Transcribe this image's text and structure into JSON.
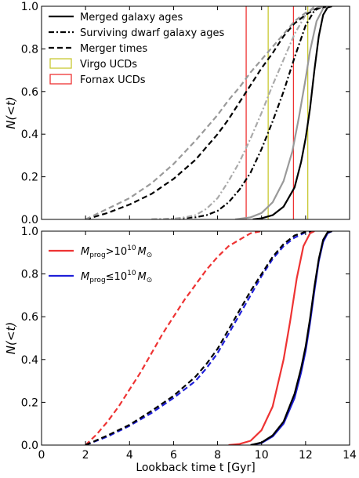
{
  "chart_data": [
    {
      "type": "line",
      "panel": "top",
      "ylabel": "N(<t)",
      "xlabel": "",
      "xlim": [
        0,
        14
      ],
      "ylim": [
        0,
        1
      ],
      "yticks": [
        "0.0",
        "0.2",
        "0.4",
        "0.6",
        "0.8",
        "1.0"
      ],
      "legend_position": "top-left",
      "legend": [
        {
          "label": "Merged galaxy ages",
          "style": "solid",
          "color": "#000000"
        },
        {
          "label": "Surviving dwarf galaxy ages",
          "style": "dashdot",
          "color": "#000000"
        },
        {
          "label": "Merger times",
          "style": "dashed",
          "color": "#000000"
        },
        {
          "label": "Virgo UCDs",
          "style": "box",
          "color": "#c8c832"
        },
        {
          "label": "Fornax UCDs",
          "style": "box",
          "color": "#ee3333"
        }
      ],
      "vlines": [
        {
          "x": 9.3,
          "color": "#ee3333"
        },
        {
          "x": 11.45,
          "color": "#ee3333"
        },
        {
          "x": 10.3,
          "color": "#c8c832"
        },
        {
          "x": 12.1,
          "color": "#c8c832"
        }
      ],
      "series": [
        {
          "name": "Merged galaxy ages",
          "style": "solid",
          "color": "#000000",
          "points": [
            [
              9.6,
              0
            ],
            [
              10.0,
              0.005
            ],
            [
              10.5,
              0.02
            ],
            [
              11.0,
              0.06
            ],
            [
              11.5,
              0.15
            ],
            [
              11.8,
              0.27
            ],
            [
              12.0,
              0.38
            ],
            [
              12.2,
              0.52
            ],
            [
              12.4,
              0.7
            ],
            [
              12.6,
              0.86
            ],
            [
              12.8,
              0.96
            ],
            [
              13.0,
              0.995
            ],
            [
              13.2,
              1.0
            ]
          ]
        },
        {
          "style": "solid",
          "color": "#999999",
          "points": [
            [
              8.8,
              0
            ],
            [
              9.5,
              0.01
            ],
            [
              10.0,
              0.03
            ],
            [
              10.5,
              0.08
            ],
            [
              11.0,
              0.18
            ],
            [
              11.4,
              0.32
            ],
            [
              11.7,
              0.48
            ],
            [
              12.0,
              0.66
            ],
            [
              12.2,
              0.79
            ],
            [
              12.5,
              0.93
            ],
            [
              12.8,
              0.99
            ],
            [
              13.0,
              1.0
            ]
          ]
        },
        {
          "name": "Surviving dwarf galaxy ages",
          "style": "dashdot",
          "color": "#000000",
          "points": [
            [
              5,
              0
            ],
            [
              6,
              0.003
            ],
            [
              7,
              0.01
            ],
            [
              7.5,
              0.02
            ],
            [
              8,
              0.04
            ],
            [
              8.5,
              0.08
            ],
            [
              9,
              0.14
            ],
            [
              9.5,
              0.22
            ],
            [
              10,
              0.33
            ],
            [
              10.5,
              0.46
            ],
            [
              11,
              0.6
            ],
            [
              11.5,
              0.76
            ],
            [
              12,
              0.91
            ],
            [
              12.4,
              0.98
            ],
            [
              12.8,
              1.0
            ]
          ]
        },
        {
          "style": "dashdot",
          "color": "#aaaaaa",
          "points": [
            [
              5,
              0
            ],
            [
              6,
              0.003
            ],
            [
              6.5,
              0.01
            ],
            [
              7,
              0.02
            ],
            [
              7.5,
              0.05
            ],
            [
              8,
              0.1
            ],
            [
              8.5,
              0.18
            ],
            [
              9,
              0.27
            ],
            [
              9.5,
              0.38
            ],
            [
              10,
              0.5
            ],
            [
              10.5,
              0.63
            ],
            [
              11,
              0.75
            ],
            [
              11.5,
              0.87
            ],
            [
              12,
              0.96
            ],
            [
              12.4,
              1.0
            ]
          ]
        },
        {
          "name": "Merger times",
          "style": "dashed",
          "color": "#000000",
          "points": [
            [
              2,
              0
            ],
            [
              3,
              0.03
            ],
            [
              4,
              0.07
            ],
            [
              5,
              0.12
            ],
            [
              6,
              0.19
            ],
            [
              7,
              0.28
            ],
            [
              8,
              0.4
            ],
            [
              8.5,
              0.47
            ],
            [
              9,
              0.55
            ],
            [
              9.5,
              0.63
            ],
            [
              10,
              0.71
            ],
            [
              10.5,
              0.78
            ],
            [
              11,
              0.86
            ],
            [
              11.5,
              0.92
            ],
            [
              12,
              0.96
            ],
            [
              12.5,
              0.99
            ],
            [
              13,
              1.0
            ]
          ]
        },
        {
          "style": "dashed",
          "color": "#999999",
          "points": [
            [
              2,
              0
            ],
            [
              3,
              0.05
            ],
            [
              4,
              0.1
            ],
            [
              5,
              0.17
            ],
            [
              6,
              0.26
            ],
            [
              7,
              0.37
            ],
            [
              8,
              0.49
            ],
            [
              8.5,
              0.56
            ],
            [
              9,
              0.62
            ],
            [
              9.5,
              0.69
            ],
            [
              10,
              0.75
            ],
            [
              10.5,
              0.81
            ],
            [
              11,
              0.87
            ],
            [
              11.5,
              0.93
            ],
            [
              12,
              0.97
            ],
            [
              12.5,
              0.995
            ],
            [
              13,
              1.0
            ]
          ]
        }
      ]
    },
    {
      "type": "line",
      "panel": "bottom",
      "ylabel": "N(<t)",
      "xlabel": "Lookback time t [Gyr]",
      "xlim": [
        0,
        14
      ],
      "ylim": [
        0,
        1
      ],
      "xticks": [
        "0",
        "2",
        "4",
        "6",
        "8",
        "10",
        "12",
        "14"
      ],
      "yticks": [
        "0.0",
        "0.2",
        "0.4",
        "0.6",
        "0.8",
        "1.0"
      ],
      "legend_position": "top-left",
      "legend": [
        {
          "label_main": "M",
          "label_sub": "prog",
          "label_rel": ">10",
          "label_exp": "10",
          "label_unit": "M",
          "label_unit_sub": "⊙",
          "color": "#ee3333"
        },
        {
          "label_main": "M",
          "label_sub": "prog",
          "label_rel": "≤10",
          "label_exp": "10",
          "label_unit": "M",
          "label_unit_sub": "⊙",
          "color": "#1f1fd8"
        }
      ],
      "series": [
        {
          "style": "dashed",
          "color": "#ee3333",
          "points": [
            [
              2,
              0
            ],
            [
              2.5,
              0.05
            ],
            [
              3,
              0.11
            ],
            [
              3.5,
              0.18
            ],
            [
              4,
              0.26
            ],
            [
              4.5,
              0.34
            ],
            [
              5,
              0.43
            ],
            [
              5.5,
              0.52
            ],
            [
              6,
              0.6
            ],
            [
              6.5,
              0.68
            ],
            [
              7,
              0.75
            ],
            [
              7.5,
              0.82
            ],
            [
              8,
              0.88
            ],
            [
              8.5,
              0.93
            ],
            [
              9,
              0.96
            ],
            [
              9.5,
              0.99
            ],
            [
              10,
              1.0
            ]
          ]
        },
        {
          "style": "dashed",
          "color": "#1f1fd8",
          "points": [
            [
              2,
              0
            ],
            [
              3,
              0.04
            ],
            [
              4,
              0.09
            ],
            [
              5,
              0.15
            ],
            [
              6,
              0.22
            ],
            [
              7,
              0.3
            ],
            [
              7.5,
              0.36
            ],
            [
              8,
              0.43
            ],
            [
              8.5,
              0.52
            ],
            [
              9,
              0.61
            ],
            [
              9.5,
              0.7
            ],
            [
              10,
              0.79
            ],
            [
              10.5,
              0.87
            ],
            [
              11,
              0.93
            ],
            [
              11.5,
              0.97
            ],
            [
              12,
              0.995
            ],
            [
              12.4,
              1.0
            ]
          ]
        },
        {
          "style": "dashed",
          "color": "#000000",
          "points": [
            [
              2,
              0
            ],
            [
              3,
              0.045
            ],
            [
              4,
              0.095
            ],
            [
              5,
              0.16
            ],
            [
              6,
              0.23
            ],
            [
              7,
              0.32
            ],
            [
              7.5,
              0.38
            ],
            [
              8,
              0.45
            ],
            [
              8.5,
              0.54
            ],
            [
              9,
              0.63
            ],
            [
              9.5,
              0.72
            ],
            [
              10,
              0.8
            ],
            [
              10.5,
              0.88
            ],
            [
              11,
              0.94
            ],
            [
              11.5,
              0.98
            ],
            [
              12,
              0.997
            ],
            [
              12.4,
              1.0
            ]
          ]
        },
        {
          "style": "solid",
          "color": "#ee3333",
          "points": [
            [
              8.5,
              0
            ],
            [
              9,
              0.005
            ],
            [
              9.5,
              0.02
            ],
            [
              10,
              0.07
            ],
            [
              10.5,
              0.18
            ],
            [
              11,
              0.4
            ],
            [
              11.3,
              0.58
            ],
            [
              11.6,
              0.78
            ],
            [
              11.9,
              0.93
            ],
            [
              12.2,
              0.99
            ],
            [
              12.4,
              1.0
            ]
          ]
        },
        {
          "style": "solid",
          "color": "#1f1fd8",
          "points": [
            [
              9.5,
              0
            ],
            [
              10,
              0.01
            ],
            [
              10.5,
              0.04
            ],
            [
              11,
              0.1
            ],
            [
              11.5,
              0.22
            ],
            [
              11.8,
              0.34
            ],
            [
              12,
              0.44
            ],
            [
              12.2,
              0.57
            ],
            [
              12.4,
              0.72
            ],
            [
              12.6,
              0.86
            ],
            [
              12.8,
              0.95
            ],
            [
              13,
              0.99
            ],
            [
              13.2,
              1.0
            ]
          ]
        },
        {
          "style": "solid",
          "color": "#000000",
          "points": [
            [
              9.5,
              0
            ],
            [
              10,
              0.012
            ],
            [
              10.5,
              0.045
            ],
            [
              11,
              0.11
            ],
            [
              11.5,
              0.24
            ],
            [
              11.8,
              0.36
            ],
            [
              12,
              0.46
            ],
            [
              12.2,
              0.59
            ],
            [
              12.4,
              0.74
            ],
            [
              12.6,
              0.87
            ],
            [
              12.8,
              0.96
            ],
            [
              13,
              0.995
            ],
            [
              13.2,
              1.0
            ]
          ]
        }
      ]
    }
  ]
}
